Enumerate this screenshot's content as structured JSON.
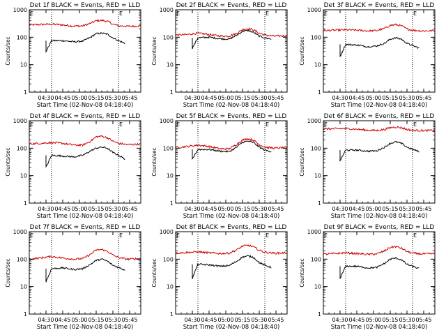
{
  "figure": {
    "colors": {
      "events": "#000000",
      "lld": "#cc0000",
      "axis": "#000000",
      "background": "#ffffff"
    },
    "axis_note": "log y-axis; dotted vertical markers on each panel"
  },
  "chart_data": [
    {
      "type": "line",
      "title": "Det 1f BLACK = Events, RED = LLD",
      "xlabel": "Start Time (02-Nov-08 04:18:40)",
      "ylabel": "Counts/sec",
      "yscale": "log",
      "ylim": [
        1,
        1000
      ],
      "yticks": [
        "1",
        "10",
        "100",
        "1000"
      ],
      "xlim": [
        0,
        100
      ],
      "xtick_labels": [
        "04:30",
        "04:45",
        "05:00",
        "05:15",
        "05:30",
        "05:45"
      ],
      "xticks": [
        15,
        30,
        45,
        60,
        75,
        90
      ],
      "marker_labels": [
        "E",
        "E"
      ],
      "vlines": [
        20,
        80
      ],
      "grid": false,
      "series": [
        {
          "name": "Events",
          "color": "#000000",
          "x_start": 15,
          "x_end": 86,
          "x": [
            15,
            20,
            30,
            40,
            48,
            55,
            60,
            65,
            70,
            75,
            80,
            86
          ],
          "y": [
            30,
            75,
            75,
            68,
            72,
            100,
            135,
            140,
            130,
            95,
            75,
            60
          ]
        },
        {
          "name": "LLD",
          "color": "#cc0000",
          "x_start": 0,
          "x_end": 100,
          "x": [
            0,
            10,
            20,
            30,
            40,
            48,
            55,
            60,
            65,
            70,
            75,
            80,
            88,
            100
          ],
          "y": [
            280,
            290,
            300,
            280,
            255,
            260,
            320,
            400,
            410,
            380,
            300,
            260,
            250,
            255
          ]
        }
      ]
    },
    {
      "type": "line",
      "title": "Det 2f BLACK = Events, RED = LLD",
      "xlabel": "Start Time (02-Nov-08 04:18:40)",
      "ylabel": "Counts/sec",
      "yscale": "log",
      "ylim": [
        1,
        1000
      ],
      "yticks": [
        "1",
        "10",
        "100",
        "1000"
      ],
      "xlim": [
        0,
        100
      ],
      "xtick_labels": [
        "04:30",
        "04:45",
        "05:00",
        "05:15",
        "05:30",
        "05:45"
      ],
      "xticks": [
        15,
        30,
        45,
        60,
        75,
        90
      ],
      "marker_labels": [
        "E",
        "E"
      ],
      "vlines": [
        20,
        80
      ],
      "grid": false,
      "series": [
        {
          "name": "Events",
          "color": "#000000",
          "x_start": 15,
          "x_end": 86,
          "x": [
            15,
            20,
            30,
            40,
            48,
            55,
            60,
            65,
            70,
            75,
            80,
            86
          ],
          "y": [
            40,
            95,
            100,
            88,
            85,
            120,
            165,
            175,
            150,
            110,
            95,
            85
          ]
        },
        {
          "name": "LLD",
          "color": "#cc0000",
          "x_start": 0,
          "x_end": 100,
          "x": [
            0,
            10,
            20,
            30,
            40,
            48,
            55,
            60,
            65,
            70,
            75,
            80,
            88,
            100
          ],
          "y": [
            120,
            125,
            140,
            125,
            110,
            110,
            140,
            190,
            205,
            185,
            140,
            120,
            110,
            112
          ]
        }
      ]
    },
    {
      "type": "line",
      "title": "Det 3f BLACK = Events, RED = LLD",
      "xlabel": "Start Time (02-Nov-08 04:18:40)",
      "ylabel": "Counts/sec",
      "yscale": "log",
      "ylim": [
        1,
        1000
      ],
      "yticks": [
        "1",
        "10",
        "100",
        "1000"
      ],
      "xlim": [
        0,
        100
      ],
      "xtick_labels": [
        "04:30",
        "04:45",
        "05:00",
        "05:15",
        "05:30",
        "05:45"
      ],
      "xticks": [
        15,
        30,
        45,
        60,
        75,
        90
      ],
      "marker_labels": [
        "E",
        "E"
      ],
      "vlines": [
        20,
        80
      ],
      "grid": false,
      "series": [
        {
          "name": "Events",
          "color": "#000000",
          "x_start": 15,
          "x_end": 86,
          "x": [
            15,
            20,
            30,
            40,
            48,
            55,
            60,
            65,
            70,
            75,
            80,
            86
          ],
          "y": [
            20,
            55,
            52,
            45,
            48,
            60,
            85,
            95,
            85,
            60,
            50,
            40
          ]
        },
        {
          "name": "LLD",
          "color": "#cc0000",
          "x_start": 0,
          "x_end": 100,
          "x": [
            0,
            10,
            20,
            30,
            40,
            48,
            55,
            60,
            65,
            70,
            75,
            80,
            88,
            100
          ],
          "y": [
            175,
            180,
            185,
            180,
            170,
            175,
            210,
            270,
            285,
            260,
            200,
            180,
            170,
            172
          ]
        }
      ]
    },
    {
      "type": "line",
      "title": "Det 4f BLACK = Events, RED = LLD",
      "xlabel": "Start Time (02-Nov-08 04:18:40)",
      "ylabel": "Counts/sec",
      "yscale": "log",
      "ylim": [
        1,
        1000
      ],
      "yticks": [
        "1",
        "10",
        "100",
        "1000"
      ],
      "xlim": [
        0,
        100
      ],
      "xtick_labels": [
        "04:30",
        "04:45",
        "05:00",
        "05:15",
        "05:30",
        "05:45"
      ],
      "xticks": [
        15,
        30,
        45,
        60,
        75,
        90
      ],
      "marker_labels": [
        "E",
        "E"
      ],
      "vlines": [
        20,
        80
      ],
      "grid": false,
      "series": [
        {
          "name": "Events",
          "color": "#000000",
          "x_start": 15,
          "x_end": 86,
          "x": [
            15,
            20,
            30,
            40,
            48,
            55,
            60,
            65,
            70,
            75,
            80,
            86
          ],
          "y": [
            20,
            55,
            52,
            48,
            55,
            80,
            100,
            110,
            100,
            70,
            55,
            40
          ]
        },
        {
          "name": "LLD",
          "color": "#cc0000",
          "x_start": 0,
          "x_end": 100,
          "x": [
            0,
            10,
            20,
            30,
            40,
            48,
            55,
            60,
            65,
            70,
            75,
            80,
            88,
            100
          ],
          "y": [
            145,
            150,
            160,
            150,
            130,
            130,
            180,
            260,
            275,
            240,
            180,
            150,
            135,
            140
          ]
        }
      ]
    },
    {
      "type": "line",
      "title": "Det 5f BLACK = Events, RED = LLD",
      "xlabel": "Start Time (02-Nov-08 04:18:40)",
      "ylabel": "Counts/sec",
      "yscale": "log",
      "ylim": [
        1,
        1000
      ],
      "yticks": [
        "1",
        "10",
        "100",
        "1000"
      ],
      "xlim": [
        0,
        100
      ],
      "xtick_labels": [
        "04:30",
        "04:45",
        "05:00",
        "05:15",
        "05:30",
        "05:45"
      ],
      "xticks": [
        15,
        30,
        45,
        60,
        75,
        90
      ],
      "marker_labels": [
        "E",
        "E"
      ],
      "vlines": [
        20,
        80
      ],
      "grid": false,
      "series": [
        {
          "name": "Events",
          "color": "#000000",
          "x_start": 15,
          "x_end": 86,
          "x": [
            15,
            20,
            30,
            40,
            48,
            55,
            60,
            65,
            70,
            75,
            80,
            86
          ],
          "y": [
            40,
            90,
            90,
            78,
            75,
            110,
            165,
            180,
            160,
            110,
            85,
            75
          ]
        },
        {
          "name": "LLD",
          "color": "#cc0000",
          "x_start": 0,
          "x_end": 100,
          "x": [
            0,
            10,
            20,
            30,
            40,
            48,
            55,
            60,
            65,
            70,
            75,
            80,
            88,
            100
          ],
          "y": [
            105,
            115,
            130,
            115,
            95,
            95,
            140,
            200,
            220,
            195,
            135,
            110,
            100,
            105
          ]
        }
      ]
    },
    {
      "type": "line",
      "title": "Det 6f BLACK = Events, RED = LLD",
      "xlabel": "Start Time (02-Nov-08 04:18:40)",
      "ylabel": "Counts/sec",
      "yscale": "log",
      "ylim": [
        1,
        1000
      ],
      "yticks": [
        "1",
        "10",
        "100",
        "1000"
      ],
      "xlim": [
        0,
        100
      ],
      "xtick_labels": [
        "04:30",
        "04:45",
        "05:00",
        "05:15",
        "05:30",
        "05:45"
      ],
      "xticks": [
        15,
        30,
        45,
        60,
        75,
        90
      ],
      "marker_labels": [
        "E",
        "E"
      ],
      "vlines": [
        20,
        80
      ],
      "grid": false,
      "series": [
        {
          "name": "Events",
          "color": "#000000",
          "x_start": 15,
          "x_end": 86,
          "x": [
            15,
            20,
            30,
            40,
            48,
            55,
            60,
            65,
            70,
            75,
            80,
            86
          ],
          "y": [
            35,
            85,
            85,
            78,
            80,
            110,
            150,
            170,
            150,
            110,
            90,
            75
          ]
        },
        {
          "name": "LLD",
          "color": "#cc0000",
          "x_start": 0,
          "x_end": 100,
          "x": [
            0,
            10,
            20,
            30,
            40,
            48,
            55,
            60,
            65,
            70,
            75,
            80,
            88,
            100
          ],
          "y": [
            500,
            510,
            520,
            490,
            450,
            440,
            480,
            560,
            590,
            560,
            480,
            450,
            440,
            445
          ]
        }
      ]
    },
    {
      "type": "line",
      "title": "Det 7f BLACK = Events, RED = LLD",
      "xlabel": "Start Time (02-Nov-08 04:18:40)",
      "ylabel": "Counts/sec",
      "yscale": "log",
      "ylim": [
        1,
        1000
      ],
      "yticks": [
        "1",
        "10",
        "100",
        "1000"
      ],
      "xlim": [
        0,
        100
      ],
      "xtick_labels": [
        "04:30",
        "04:45",
        "05:00",
        "05:15",
        "05:30",
        "05:45"
      ],
      "xticks": [
        15,
        30,
        45,
        60,
        75,
        90
      ],
      "marker_labels": [
        "E",
        "E"
      ],
      "vlines": [
        20,
        80
      ],
      "grid": false,
      "series": [
        {
          "name": "Events",
          "color": "#000000",
          "x_start": 15,
          "x_end": 86,
          "x": [
            15,
            20,
            30,
            40,
            48,
            55,
            60,
            65,
            70,
            75,
            80,
            86
          ],
          "y": [
            15,
            45,
            48,
            42,
            45,
            65,
            90,
            100,
            85,
            60,
            50,
            40
          ]
        },
        {
          "name": "LLD",
          "color": "#cc0000",
          "x_start": 0,
          "x_end": 100,
          "x": [
            0,
            10,
            20,
            30,
            40,
            48,
            55,
            60,
            65,
            70,
            75,
            80,
            88,
            100
          ],
          "y": [
            100,
            110,
            125,
            110,
            100,
            105,
            150,
            215,
            225,
            195,
            140,
            115,
            100,
            105
          ]
        }
      ]
    },
    {
      "type": "line",
      "title": "Det 8f BLACK = Events, RED = LLD",
      "xlabel": "Start Time (02-Nov-08 04:18:40)",
      "ylabel": "Counts/sec",
      "yscale": "log",
      "ylim": [
        1,
        1000
      ],
      "yticks": [
        "1",
        "10",
        "100",
        "1000"
      ],
      "xlim": [
        0,
        100
      ],
      "xtick_labels": [
        "04:30",
        "04:45",
        "05:00",
        "05:15",
        "05:30",
        "05:45"
      ],
      "xticks": [
        15,
        30,
        45,
        60,
        75,
        90
      ],
      "marker_labels": [
        "E",
        "E"
      ],
      "vlines": [
        20,
        80
      ],
      "grid": false,
      "series": [
        {
          "name": "Events",
          "color": "#000000",
          "x_start": 15,
          "x_end": 86,
          "x": [
            15,
            20,
            30,
            40,
            48,
            55,
            60,
            65,
            70,
            75,
            80,
            86
          ],
          "y": [
            20,
            65,
            62,
            55,
            58,
            85,
            120,
            130,
            115,
            75,
            60,
            50
          ]
        },
        {
          "name": "LLD",
          "color": "#cc0000",
          "x_start": 0,
          "x_end": 100,
          "x": [
            0,
            10,
            20,
            30,
            40,
            48,
            55,
            60,
            65,
            70,
            75,
            80,
            88,
            100
          ],
          "y": [
            165,
            175,
            185,
            170,
            160,
            165,
            220,
            300,
            320,
            280,
            210,
            180,
            165,
            170
          ]
        }
      ]
    },
    {
      "type": "line",
      "title": "Det 9f BLACK = Events, RED = LLD",
      "xlabel": "Start Time (02-Nov-08 04:18:40)",
      "ylabel": "Counts/sec",
      "yscale": "log",
      "ylim": [
        1,
        1000
      ],
      "yticks": [
        "1",
        "10",
        "100",
        "1000"
      ],
      "xlim": [
        0,
        100
      ],
      "xtick_labels": [
        "04:30",
        "04:45",
        "05:00",
        "05:15",
        "05:30",
        "05:45"
      ],
      "xticks": [
        15,
        30,
        45,
        60,
        75,
        90
      ],
      "marker_labels": [
        "E",
        "E"
      ],
      "vlines": [
        20,
        80
      ],
      "grid": false,
      "series": [
        {
          "name": "Events",
          "color": "#000000",
          "x_start": 15,
          "x_end": 86,
          "x": [
            15,
            20,
            30,
            40,
            48,
            55,
            60,
            65,
            70,
            75,
            80,
            86
          ],
          "y": [
            20,
            55,
            55,
            48,
            50,
            70,
            100,
            110,
            95,
            65,
            55,
            45
          ]
        },
        {
          "name": "LLD",
          "color": "#cc0000",
          "x_start": 0,
          "x_end": 100,
          "x": [
            0,
            10,
            20,
            30,
            40,
            48,
            55,
            60,
            65,
            70,
            75,
            80,
            88,
            100
          ],
          "y": [
            150,
            160,
            170,
            160,
            150,
            155,
            200,
            270,
            285,
            250,
            190,
            165,
            155,
            158
          ]
        }
      ]
    }
  ]
}
